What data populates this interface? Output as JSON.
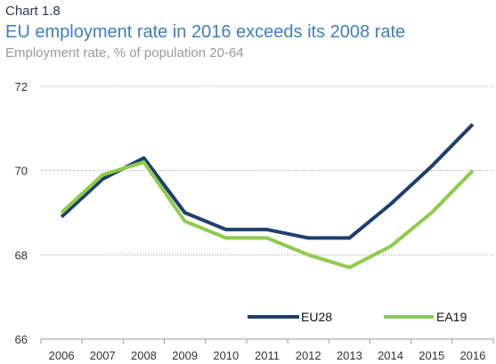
{
  "header": {
    "label": "Chart 1.8",
    "title": "EU employment rate in 2016 exceeds its 2008 rate",
    "subtitle": "Employment rate, % of population 20-64"
  },
  "chart_data": {
    "type": "line",
    "title": "EU employment rate in 2016 exceeds its 2008 rate",
    "subtitle": "Employment rate, % of population 20-64",
    "xlabel": "",
    "ylabel": "",
    "x": [
      "2006",
      "2007",
      "2008",
      "2009",
      "2010",
      "2011",
      "2012",
      "2013",
      "2014",
      "2015",
      "2016"
    ],
    "ylim": [
      66,
      72
    ],
    "yticks": [
      66,
      68,
      70,
      72
    ],
    "grid": "horizontal dotted",
    "legend_position": "bottom-right",
    "series": [
      {
        "name": "EU28",
        "color": "#1f3f6e",
        "values": [
          68.9,
          69.8,
          70.3,
          69.0,
          68.6,
          68.6,
          68.4,
          68.4,
          69.2,
          70.1,
          71.1
        ]
      },
      {
        "name": "EA19",
        "color": "#8ccc4a",
        "values": [
          69.0,
          69.9,
          70.2,
          68.8,
          68.4,
          68.4,
          68.0,
          67.7,
          68.2,
          69.0,
          70.0
        ]
      }
    ]
  }
}
